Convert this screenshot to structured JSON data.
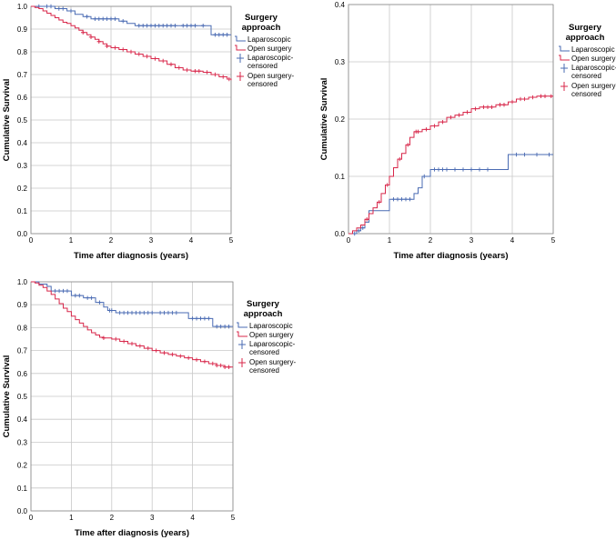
{
  "chart_data": [
    {
      "type": "line",
      "title": "",
      "xlabel": "Time after diagnosis (years)",
      "ylabel": "Cumulative Survival",
      "xlim": [
        0,
        5
      ],
      "ylim": [
        0,
        1.0
      ],
      "xticks": [
        "0",
        "1",
        "2",
        "3",
        "4",
        "5"
      ],
      "yticks": [
        "0.0",
        "0.1",
        "0.2",
        "0.3",
        "0.4",
        "0.5",
        "0.6",
        "0.7",
        "0.8",
        "0.9",
        "1.0"
      ],
      "grid": true,
      "legend": {
        "title": "Surgery approach",
        "position": "right",
        "entries": [
          "Laparoscopic",
          "Open surgery",
          "Laparoscopic-censored",
          "Open surgery-censored"
        ]
      },
      "series": [
        {
          "name": "Laparoscopic",
          "color": "#4a6bb3",
          "steps": [
            [
              0,
              1.0
            ],
            [
              0.6,
              0.99
            ],
            [
              0.9,
              0.98
            ],
            [
              1.1,
              0.965
            ],
            [
              1.3,
              0.955
            ],
            [
              1.5,
              0.945
            ],
            [
              2.2,
              0.935
            ],
            [
              2.4,
              0.925
            ],
            [
              2.6,
              0.915
            ],
            [
              4.5,
              0.875
            ],
            [
              5,
              0.875
            ]
          ],
          "censored": [
            0.2,
            0.4,
            0.5,
            0.7,
            0.8,
            1.0,
            1.4,
            1.6,
            1.7,
            1.8,
            1.9,
            2.0,
            2.1,
            2.3,
            2.7,
            2.8,
            2.9,
            3.0,
            3.1,
            3.2,
            3.3,
            3.4,
            3.5,
            3.6,
            3.8,
            3.9,
            4.0,
            4.1,
            4.3,
            4.6,
            4.7,
            4.8,
            4.9
          ]
        },
        {
          "name": "Open surgery",
          "color": "#d8274a",
          "steps": [
            [
              0,
              1.0
            ],
            [
              0.1,
              0.995
            ],
            [
              0.2,
              0.99
            ],
            [
              0.3,
              0.98
            ],
            [
              0.4,
              0.97
            ],
            [
              0.5,
              0.96
            ],
            [
              0.6,
              0.95
            ],
            [
              0.7,
              0.94
            ],
            [
              0.8,
              0.93
            ],
            [
              0.9,
              0.925
            ],
            [
              1.0,
              0.915
            ],
            [
              1.1,
              0.905
            ],
            [
              1.2,
              0.895
            ],
            [
              1.3,
              0.885
            ],
            [
              1.4,
              0.875
            ],
            [
              1.5,
              0.865
            ],
            [
              1.6,
              0.855
            ],
            [
              1.7,
              0.845
            ],
            [
              1.8,
              0.835
            ],
            [
              1.9,
              0.825
            ],
            [
              2.0,
              0.818
            ],
            [
              2.2,
              0.81
            ],
            [
              2.4,
              0.8
            ],
            [
              2.6,
              0.79
            ],
            [
              2.8,
              0.78
            ],
            [
              3.0,
              0.77
            ],
            [
              3.2,
              0.76
            ],
            [
              3.4,
              0.745
            ],
            [
              3.6,
              0.73
            ],
            [
              3.8,
              0.72
            ],
            [
              4.0,
              0.715
            ],
            [
              4.3,
              0.71
            ],
            [
              4.5,
              0.7
            ],
            [
              4.7,
              0.69
            ],
            [
              4.9,
              0.68
            ],
            [
              5,
              0.675
            ]
          ],
          "censored": [
            1.3,
            1.5,
            1.7,
            1.9,
            2.1,
            2.3,
            2.5,
            2.7,
            2.9,
            3.1,
            3.3,
            3.5,
            3.7,
            3.9,
            4.1,
            4.2,
            4.4,
            4.6,
            4.8,
            4.95
          ]
        }
      ]
    },
    {
      "type": "line",
      "title": "",
      "xlabel": "Time after diagnosis (years)",
      "ylabel": "Cumulative Survival",
      "xlim": [
        0,
        5
      ],
      "ylim": [
        0,
        0.4
      ],
      "xticks": [
        "0",
        "1",
        "2",
        "3",
        "4",
        "5"
      ],
      "yticks": [
        "0.0",
        "0.1",
        "0.2",
        "0.3",
        "0.4"
      ],
      "grid": true,
      "legend": {
        "title": "Surgery approach",
        "position": "right",
        "entries": [
          "Laparoscopic",
          "Open surgery",
          "Laparoscopic-censored",
          "Open surgery-censored"
        ]
      },
      "series": [
        {
          "name": "Laparoscopic",
          "color": "#4a6bb3",
          "steps": [
            [
              0,
              0
            ],
            [
              0.2,
              0.005
            ],
            [
              0.3,
              0.01
            ],
            [
              0.4,
              0.02
            ],
            [
              0.5,
              0.04
            ],
            [
              1.0,
              0.06
            ],
            [
              1.6,
              0.07
            ],
            [
              1.7,
              0.08
            ],
            [
              1.8,
              0.1
            ],
            [
              2.0,
              0.112
            ],
            [
              3.9,
              0.138
            ],
            [
              5,
              0.138
            ]
          ],
          "censored": [
            0.15,
            0.25,
            0.35,
            1.1,
            1.2,
            1.3,
            1.4,
            1.5,
            1.85,
            2.1,
            2.2,
            2.3,
            2.4,
            2.6,
            2.8,
            3.0,
            3.2,
            3.4,
            4.1,
            4.3,
            4.6,
            4.9
          ]
        },
        {
          "name": "Open surgery",
          "color": "#d8274a",
          "steps": [
            [
              0,
              0
            ],
            [
              0.1,
              0.005
            ],
            [
              0.2,
              0.01
            ],
            [
              0.3,
              0.015
            ],
            [
              0.4,
              0.025
            ],
            [
              0.5,
              0.035
            ],
            [
              0.6,
              0.045
            ],
            [
              0.7,
              0.055
            ],
            [
              0.8,
              0.07
            ],
            [
              0.9,
              0.085
            ],
            [
              1.0,
              0.1
            ],
            [
              1.1,
              0.115
            ],
            [
              1.2,
              0.13
            ],
            [
              1.3,
              0.14
            ],
            [
              1.4,
              0.155
            ],
            [
              1.5,
              0.168
            ],
            [
              1.6,
              0.178
            ],
            [
              1.8,
              0.182
            ],
            [
              2.0,
              0.188
            ],
            [
              2.2,
              0.195
            ],
            [
              2.4,
              0.203
            ],
            [
              2.6,
              0.207
            ],
            [
              2.8,
              0.212
            ],
            [
              3.0,
              0.218
            ],
            [
              3.2,
              0.221
            ],
            [
              3.6,
              0.225
            ],
            [
              3.9,
              0.23
            ],
            [
              4.1,
              0.235
            ],
            [
              4.4,
              0.238
            ],
            [
              4.6,
              0.24
            ],
            [
              5,
              0.24
            ]
          ],
          "censored": [
            0.45,
            0.75,
            0.95,
            1.25,
            1.45,
            1.65,
            1.7,
            1.9,
            2.1,
            2.3,
            2.5,
            2.7,
            2.9,
            3.1,
            3.3,
            3.4,
            3.5,
            3.7,
            3.8,
            4.0,
            4.2,
            4.3,
            4.5,
            4.7,
            4.8,
            4.95
          ]
        }
      ]
    },
    {
      "type": "line",
      "title": "",
      "xlabel": "Time after diagnosis (years)",
      "ylabel": "Cumulative Survival",
      "xlim": [
        0,
        5
      ],
      "ylim": [
        0,
        1.0
      ],
      "xticks": [
        "0",
        "1",
        "2",
        "3",
        "4",
        "5"
      ],
      "yticks": [
        "0.0",
        "0.1",
        "0.2",
        "0.3",
        "0.4",
        "0.5",
        "0.6",
        "0.7",
        "0.8",
        "0.9",
        "1.0"
      ],
      "grid": true,
      "legend": {
        "title": "Surgery approach",
        "position": "right",
        "entries": [
          "Laparoscopic",
          "Open surgery",
          "Laparoscopic-censored",
          "Open surgery-censored"
        ]
      },
      "series": [
        {
          "name": "Laparoscopic",
          "color": "#4a6bb3",
          "steps": [
            [
              0,
              1.0
            ],
            [
              0.2,
              0.99
            ],
            [
              0.4,
              0.98
            ],
            [
              0.5,
              0.96
            ],
            [
              1.0,
              0.94
            ],
            [
              1.3,
              0.93
            ],
            [
              1.6,
              0.91
            ],
            [
              1.8,
              0.89
            ],
            [
              1.9,
              0.875
            ],
            [
              2.1,
              0.865
            ],
            [
              3.9,
              0.84
            ],
            [
              4.5,
              0.805
            ],
            [
              5,
              0.805
            ]
          ],
          "censored": [
            0.6,
            0.7,
            0.8,
            0.9,
            1.1,
            1.2,
            1.4,
            1.5,
            1.7,
            1.95,
            2.0,
            2.2,
            2.3,
            2.4,
            2.5,
            2.6,
            2.7,
            2.8,
            2.9,
            3.0,
            3.2,
            3.3,
            3.4,
            3.5,
            3.6,
            4.0,
            4.1,
            4.2,
            4.3,
            4.4,
            4.6,
            4.7,
            4.8,
            4.9
          ]
        },
        {
          "name": "Open surgery",
          "color": "#d8274a",
          "steps": [
            [
              0,
              1.0
            ],
            [
              0.1,
              0.995
            ],
            [
              0.2,
              0.985
            ],
            [
              0.3,
              0.975
            ],
            [
              0.4,
              0.96
            ],
            [
              0.5,
              0.945
            ],
            [
              0.6,
              0.925
            ],
            [
              0.7,
              0.905
            ],
            [
              0.8,
              0.885
            ],
            [
              0.9,
              0.87
            ],
            [
              1.0,
              0.85
            ],
            [
              1.1,
              0.835
            ],
            [
              1.2,
              0.82
            ],
            [
              1.3,
              0.805
            ],
            [
              1.4,
              0.79
            ],
            [
              1.5,
              0.778
            ],
            [
              1.6,
              0.768
            ],
            [
              1.7,
              0.758
            ],
            [
              1.8,
              0.755
            ],
            [
              2.0,
              0.75
            ],
            [
              2.2,
              0.74
            ],
            [
              2.4,
              0.73
            ],
            [
              2.6,
              0.72
            ],
            [
              2.8,
              0.71
            ],
            [
              3.0,
              0.7
            ],
            [
              3.2,
              0.69
            ],
            [
              3.4,
              0.683
            ],
            [
              3.6,
              0.676
            ],
            [
              3.8,
              0.668
            ],
            [
              4.0,
              0.66
            ],
            [
              4.2,
              0.652
            ],
            [
              4.4,
              0.643
            ],
            [
              4.6,
              0.635
            ],
            [
              4.8,
              0.628
            ],
            [
              5,
              0.628
            ]
          ],
          "censored": [
            1.8,
            2.1,
            2.3,
            2.5,
            2.7,
            2.9,
            3.1,
            3.3,
            3.5,
            3.7,
            3.9,
            4.1,
            4.3,
            4.5,
            4.6,
            4.7,
            4.8,
            4.9
          ]
        }
      ]
    }
  ]
}
